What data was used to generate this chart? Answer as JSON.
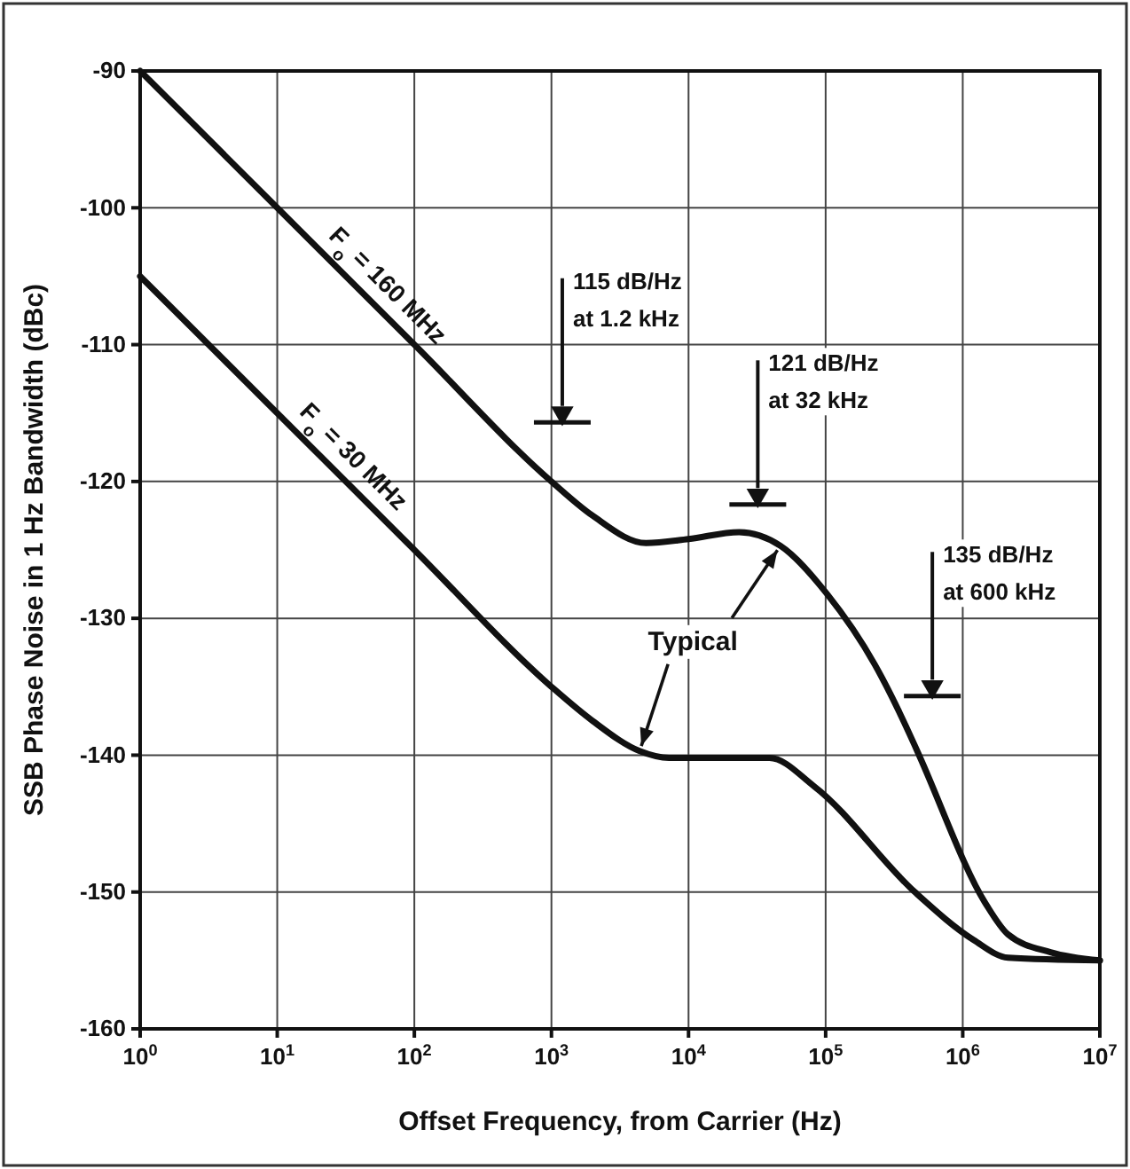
{
  "chart_data": {
    "type": "line",
    "xlabel": "Offset Frequency, from Carrier (Hz)",
    "ylabel": "SSB Phase Noise in 1 Hz Bandwidth (dBc)",
    "log": "x",
    "grid": true,
    "legend": false,
    "marker": "none",
    "line_style": "solid",
    "xlim": [
      1,
      10000000
    ],
    "ylim": [
      -160,
      -90
    ],
    "xticks": [
      {
        "value": 1,
        "label": "10$^{0}$"
      },
      {
        "value": 10,
        "label": "10$^{1}$"
      },
      {
        "value": 100,
        "label": "10$^{2}$"
      },
      {
        "value": 1000,
        "label": "10$^{3}$"
      },
      {
        "value": 10000,
        "label": "10$^{4}$"
      },
      {
        "value": 100000,
        "label": "10$^{5}$"
      },
      {
        "value": 1000000,
        "label": "10$^{6}$"
      },
      {
        "value": 10000000,
        "label": "10$^{7}$"
      }
    ],
    "yticks": [
      -160,
      -150,
      -140,
      -130,
      -120,
      -110,
      -100,
      -90
    ],
    "series": [
      {
        "name": "F$_{o}$ = 160 MHz",
        "color": "#111111",
        "x": [
          1,
          10,
          100,
          1000,
          2000,
          4900,
          10000,
          23400,
          46800,
          102000,
          229000,
          447000,
          490000,
          1480000,
          2140000,
          4370000,
          10000000
        ],
        "values": [
          -90,
          -100,
          -110,
          -120,
          -122.5,
          -124.5,
          -124.2,
          -123.7,
          -124.7,
          -128.2,
          -133.4,
          -139.3,
          -140.2,
          -150.9,
          -153.1,
          -154.4,
          -155
        ]
      },
      {
        "name": "F$_{o}$ = 30 MHz",
        "color": "#111111",
        "x": [
          1,
          10,
          100,
          1000,
          2000,
          4400,
          7200,
          38900,
          83000,
          447000,
          1200000,
          2140000,
          10000000
        ],
        "values": [
          -105,
          -115,
          -125,
          -135,
          -137.5,
          -139.7,
          -140.2,
          -140.2,
          -142.3,
          -150,
          -153.5,
          -154.8,
          -155
        ]
      },
      {
        "type": "scatter",
        "marker": "triangle",
        "color": "#111111",
        "x": [
          1200,
          32000,
          600000
        ],
        "values": [
          -115,
          -121,
          -135
        ]
      }
    ],
    "annotations": [
      "115 dB/Hz\nat 1.2 kHz",
      "121 dB/Hz\nat 32 kHz",
      "135 dB/Hz\nat 600 kHz",
      {
        "text": "Typical",
        "x": 4400,
        "y": -139.7
      }
    ]
  }
}
